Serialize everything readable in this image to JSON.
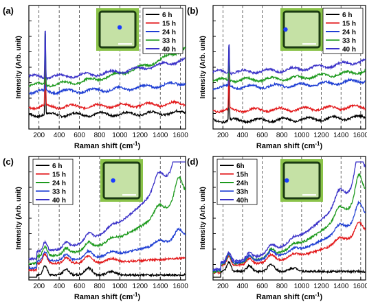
{
  "figure": {
    "shared_ylabel": "Intensity (Arb. unit)",
    "shared_xlabel_main": "Raman shift (cm",
    "shared_xlabel_sup": "-1",
    "shared_xlabel_end": ")"
  },
  "chart_data": [
    {
      "panel": "(a)",
      "type": "line",
      "xlabel": "Raman shift (cm-1)",
      "ylabel": "Intensity (Arb. unit)",
      "xlim": [
        100,
        1650
      ],
      "xticks": [
        200,
        400,
        600,
        800,
        1000,
        1200,
        1400,
        1600
      ],
      "dashed_lines_x": [
        200,
        400,
        600,
        800,
        1000,
        1200,
        1400,
        1600
      ],
      "legend_placement": "top-right",
      "inset": {
        "marker": "center",
        "marker_xy": [
          0.55,
          0.45
        ]
      },
      "series": [
        {
          "name": "6 h",
          "color": "#000000",
          "base": 0.1,
          "peak": 0.72,
          "rise": 0.02
        },
        {
          "name": "15 h",
          "color": "#e31a1c",
          "base": 0.17,
          "peak": 0.8,
          "rise": 0.03
        },
        {
          "name": "24 h",
          "color": "#1f3fd4",
          "base": 0.3,
          "peak": 0.85,
          "rise": 0.08
        },
        {
          "name": "33 h",
          "color": "#1e9a1e",
          "base": 0.36,
          "peak": 0.88,
          "rise": 0.32
        },
        {
          "name": "40 h",
          "color": "#3b32c8",
          "base": 0.43,
          "peak": 0.9,
          "rise": 0.15
        }
      ]
    },
    {
      "panel": "(b)",
      "type": "line",
      "xlabel": "Raman shift (cm-1)",
      "ylabel": "Intensity (Arb. unit)",
      "xlim": [
        100,
        1650
      ],
      "xticks": [
        200,
        400,
        600,
        800,
        1000,
        1200,
        1400,
        1600
      ],
      "dashed_lines_x": [
        200,
        400,
        600,
        800,
        1000,
        1200,
        1400,
        1600
      ],
      "legend_placement": "top-right",
      "inset": {
        "marker": "left",
        "marker_xy": [
          0.12,
          0.5
        ]
      },
      "series": [
        {
          "name": "6 h",
          "color": "#000000",
          "base": 0.05,
          "peak": 0.6,
          "rise": 0.03
        },
        {
          "name": "15 h",
          "color": "#e31a1c",
          "base": 0.14,
          "peak": 0.65,
          "rise": 0.03
        },
        {
          "name": "24 h",
          "color": "#1f3fd4",
          "base": 0.34,
          "peak": 0.7,
          "rise": 0.06
        },
        {
          "name": "33 h",
          "color": "#1e9a1e",
          "base": 0.4,
          "peak": 0.73,
          "rise": 0.08
        },
        {
          "name": "40 h",
          "color": "#3b32c8",
          "base": 0.47,
          "peak": 0.76,
          "rise": 0.1
        }
      ]
    },
    {
      "panel": "(c)",
      "type": "line",
      "xlabel": "Raman shift (cm-1)",
      "ylabel": "Intensity (Arb. unit)",
      "xlim": [
        100,
        1650
      ],
      "xticks": [
        200,
        400,
        600,
        800,
        1000,
        1200,
        1400,
        1600
      ],
      "dashed_lines_x": [
        200,
        400,
        600,
        800,
        1000,
        1200,
        1400,
        1600
      ],
      "legend_placement": "top-left",
      "inset": {
        "marker": "left-center",
        "marker_xy": [
          0.3,
          0.5
        ]
      },
      "series": [
        {
          "name": "6 h",
          "color": "#000000",
          "base": 0.02,
          "peak": 0.12,
          "rise": 0.0
        },
        {
          "name": "15 h",
          "color": "#e31a1c",
          "base": 0.12,
          "peak": 0.14,
          "rise": 0.05
        },
        {
          "name": "24 h",
          "color": "#1e9a1e",
          "base": 0.18,
          "peak": 0.2,
          "rise": 0.55
        },
        {
          "name": "33 h",
          "color": "#1f3fd4",
          "base": 0.14,
          "peak": 0.16,
          "rise": 0.22
        },
        {
          "name": "40 h",
          "color": "#3b32c8",
          "base": 0.22,
          "peak": 0.24,
          "rise": 0.85
        }
      ]
    },
    {
      "panel": "(d)",
      "type": "line",
      "xlabel": "Raman shift (cm-1)",
      "ylabel": "Intensity (Arb. unit)",
      "xlim": [
        100,
        1650
      ],
      "xticks": [
        200,
        400,
        600,
        800,
        1000,
        1200,
        1400,
        1600
      ],
      "dashed_lines_x": [
        200,
        400,
        600,
        800,
        1000,
        1200,
        1400,
        1600
      ],
      "legend_placement": "top-left",
      "inset": {
        "marker": "left",
        "marker_xy": [
          0.15,
          0.5
        ]
      },
      "series": [
        {
          "name": "6h",
          "color": "#000000",
          "base": 0.05,
          "peak": 0.18,
          "rise": 0.0
        },
        {
          "name": "15h",
          "color": "#e31a1c",
          "base": 0.1,
          "peak": 0.2,
          "rise": 0.3
        },
        {
          "name": "24h",
          "color": "#1e9a1e",
          "base": 0.11,
          "peak": 0.22,
          "rise": 0.62
        },
        {
          "name": "33h",
          "color": "#1f3fd4",
          "base": 0.12,
          "peak": 0.22,
          "rise": 0.42
        },
        {
          "name": "40h",
          "color": "#3b32c8",
          "base": 0.13,
          "peak": 0.23,
          "rise": 0.78
        }
      ]
    }
  ]
}
